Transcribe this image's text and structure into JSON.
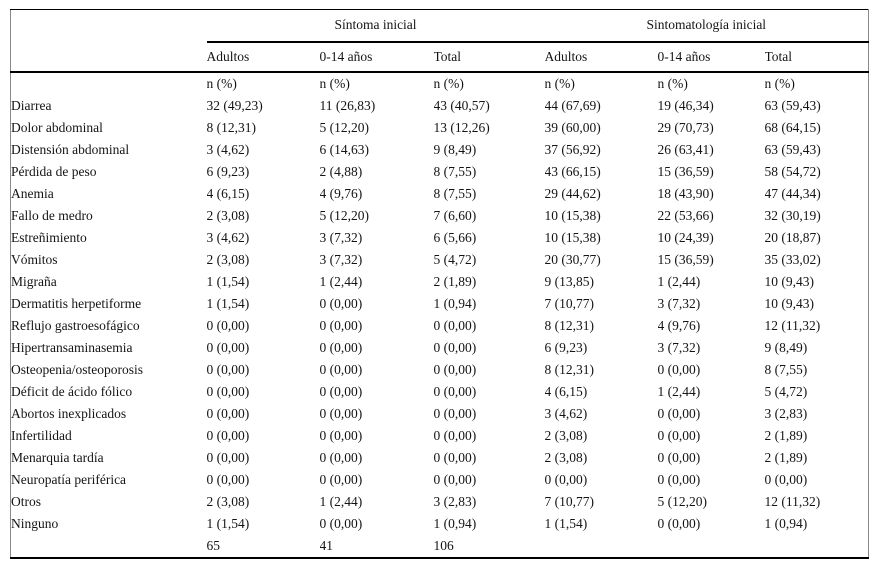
{
  "table": {
    "groups": [
      {
        "label": "Síntoma inicial"
      },
      {
        "label": "Sintomatología inicial"
      }
    ],
    "subcolumns": [
      "Adultos",
      "0-14 años",
      "Total",
      "Adultos",
      "0-14 años",
      "Total"
    ],
    "unit_label": "n (%)",
    "rows": [
      {
        "label": "Diarrea",
        "values": [
          "32 (49,23)",
          "11 (26,83)",
          "43 (40,57)",
          "44 (67,69)",
          "19 (46,34)",
          "63 (59,43)"
        ]
      },
      {
        "label": "Dolor abdominal",
        "values": [
          "8 (12,31)",
          "5 (12,20)",
          "13 (12,26)",
          "39 (60,00)",
          "29 (70,73)",
          "68 (64,15)"
        ]
      },
      {
        "label": "Distensión abdominal",
        "values": [
          "3 (4,62)",
          "6 (14,63)",
          "9 (8,49)",
          "37 (56,92)",
          "26 (63,41)",
          "63 (59,43)"
        ]
      },
      {
        "label": "Pérdida de peso",
        "values": [
          "6 (9,23)",
          "2 (4,88)",
          "8 (7,55)",
          "43 (66,15)",
          "15 (36,59)",
          "58 (54,72)"
        ]
      },
      {
        "label": "Anemia",
        "values": [
          "4 (6,15)",
          "4 (9,76)",
          "8 (7,55)",
          "29 (44,62)",
          "18 (43,90)",
          "47 (44,34)"
        ]
      },
      {
        "label": "Fallo de medro",
        "values": [
          "2 (3,08)",
          "5 (12,20)",
          "7 (6,60)",
          "10 (15,38)",
          "22 (53,66)",
          "32 (30,19)"
        ]
      },
      {
        "label": "Estreñimiento",
        "values": [
          "3 (4,62)",
          "3 (7,32)",
          "6 (5,66)",
          "10 (15,38)",
          "10 (24,39)",
          "20 (18,87)"
        ]
      },
      {
        "label": "Vómitos",
        "values": [
          "2 (3,08)",
          "3 (7,32)",
          "5 (4,72)",
          "20 (30,77)",
          "15 (36,59)",
          "35 (33,02)"
        ]
      },
      {
        "label": "Migraña",
        "values": [
          "1 (1,54)",
          "1 (2,44)",
          "2 (1,89)",
          "9 (13,85)",
          "1 (2,44)",
          "10 (9,43)"
        ]
      },
      {
        "label": "Dermatitis herpetiforme",
        "values": [
          "1 (1,54)",
          "0 (0,00)",
          "1 (0,94)",
          "7 (10,77)",
          "3 (7,32)",
          "10 (9,43)"
        ]
      },
      {
        "label": "Reflujo gastroesofágico",
        "values": [
          "0 (0,00)",
          "0 (0,00)",
          "0 (0,00)",
          "8 (12,31)",
          "4 (9,76)",
          "12 (11,32)"
        ]
      },
      {
        "label": "Hipertransaminasemia",
        "values": [
          "0 (0,00)",
          "0 (0,00)",
          "0 (0,00)",
          "6 (9,23)",
          "3 (7,32)",
          "9 (8,49)"
        ]
      },
      {
        "label": "Osteopenia/osteoporosis",
        "values": [
          "0 (0,00)",
          "0 (0,00)",
          "0 (0,00)",
          "8 (12,31)",
          "0 (0,00)",
          "8 (7,55)"
        ]
      },
      {
        "label": "Déficit de ácido fólico",
        "values": [
          "0 (0,00)",
          "0 (0,00)",
          "0 (0,00)",
          "4 (6,15)",
          "1 (2,44)",
          "5 (4,72)"
        ]
      },
      {
        "label": "Abortos inexplicados",
        "values": [
          "0 (0,00)",
          "0 (0,00)",
          "0 (0,00)",
          "3 (4,62)",
          "0 (0,00)",
          "3 (2,83)"
        ]
      },
      {
        "label": "Infertilidad",
        "values": [
          "0 (0,00)",
          "0 (0,00)",
          "0 (0,00)",
          "2 (3,08)",
          "0 (0,00)",
          "2 (1,89)"
        ]
      },
      {
        "label": "Menarquia tardía",
        "values": [
          "0 (0,00)",
          "0 (0,00)",
          "0 (0,00)",
          "2 (3,08)",
          "0 (0,00)",
          "2 (1,89)"
        ]
      },
      {
        "label": "Neuropatía periférica",
        "values": [
          "0 (0,00)",
          "0 (0,00)",
          "0 (0,00)",
          "0 (0,00)",
          "0 (0,00)",
          "0 (0,00)"
        ]
      },
      {
        "label": "Otros",
        "values": [
          "2 (3,08)",
          "1 (2,44)",
          "3 (2,83)",
          "7 (10,77)",
          "5 (12,20)",
          "12 (11,32)"
        ]
      },
      {
        "label": "Ninguno",
        "values": [
          "1 (1,54)",
          "0 (0,00)",
          "1 (0,94)",
          "1 (1,54)",
          "0 (0,00)",
          "1 (0,94)"
        ]
      }
    ],
    "totals": {
      "label": "",
      "values": [
        "65",
        "41",
        "106",
        "",
        "",
        ""
      ]
    }
  },
  "colors": {
    "background": "#ffffff",
    "text": "#141414",
    "heavy_rule": "#000000",
    "outer_border": "#8a8a8a"
  }
}
